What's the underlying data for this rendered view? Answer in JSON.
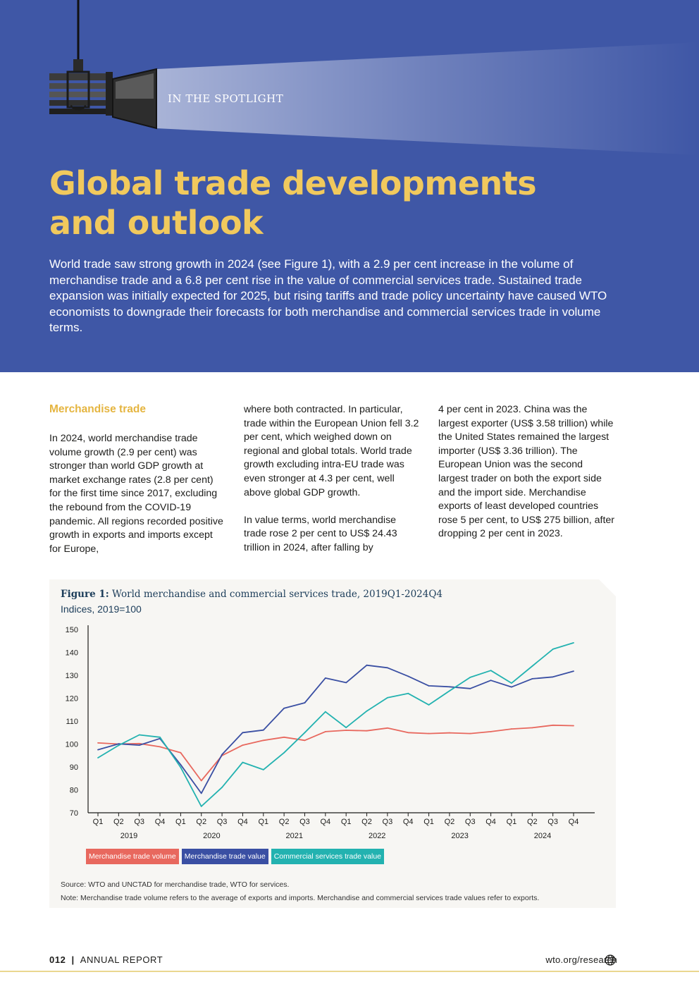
{
  "header": {
    "section_label": "IN THE SPOTLIGHT",
    "title_line1": "Global trade developments",
    "title_line2": "and outlook",
    "intro": "World trade saw strong growth in 2024 (see Figure 1), with a 2.9 per cent increase in the volume of merchandise trade and a 6.8 per cent rise in the value of commercial services trade. Sustained trade expansion was initially expected for 2025, but rising tariffs and trade policy uncertainty have caused WTO economists to downgrade their forecasts for both merchandise and commercial services trade in volume terms."
  },
  "body": {
    "heading": "Merchandise trade",
    "col1_p1": "In 2024, world merchandise trade volume growth (2.9 per cent) was stronger than world GDP growth at market exchange rates (2.8 per cent) for the first time since 2017, excluding the rebound from the COVID-19 pandemic. All regions recorded positive growth in exports and imports except for Europe,",
    "col2_p1": "where both contracted. In particular, trade within the European Union fell 3.2 per cent, which weighed down on regional and global totals. World trade growth excluding intra-EU trade was even stronger at 4.3 per cent, well above global GDP growth.",
    "col2_p2": "In value terms, world merchandise trade rose 2 per cent to US$ 24.43 trillion in 2024, after falling by",
    "col3_p1": "4 per cent in 2023. China was the largest exporter (US$ 3.58 trillion) while the United States remained the largest importer (US$ 3.36 trillion). The European Union was the second largest trader on both the export side and the import side. Merchandise exports of least developed countries rose 5 per cent, to US$ 275 billion, after dropping 2 per cent in 2023."
  },
  "figure": {
    "label": "Figure 1:",
    "title": "World merchandise and commercial services trade, 2019Q1-2024Q4",
    "subtitle": "Indices, 2019=100",
    "source": "Source: WTO and UNCTAD for merchandise trade, WTO for services.",
    "note": "Note: Merchandise trade volume refers to the average of exports and imports. Merchandise and commercial services trade values refer to exports."
  },
  "chart_data": {
    "type": "line",
    "title": "World merchandise and commercial services trade, 2019Q1-2024Q4",
    "ylabel": "Indices, 2019=100",
    "ylim": [
      70,
      150
    ],
    "yticks": [
      70,
      80,
      90,
      100,
      110,
      120,
      130,
      140,
      150
    ],
    "x": [
      "Q1",
      "Q2",
      "Q3",
      "Q4",
      "Q1",
      "Q2",
      "Q3",
      "Q4",
      "Q1",
      "Q2",
      "Q3",
      "Q4",
      "Q1",
      "Q2",
      "Q3",
      "Q4",
      "Q1",
      "Q2",
      "Q3",
      "Q4",
      "Q1",
      "Q2",
      "Q3",
      "Q4"
    ],
    "years": [
      "2019",
      "2020",
      "2021",
      "2022",
      "2023",
      "2024"
    ],
    "legend_position": "bottom-left",
    "grid": false,
    "series": [
      {
        "name": "Merchandise trade volume",
        "color": "#e8685e",
        "values": [
          100.5,
          100.0,
          100.2,
          98.8,
          96.2,
          84.0,
          95.0,
          99.5,
          101.6,
          103.0,
          101.6,
          105.4,
          106.0,
          105.8,
          107.0,
          105.0,
          104.6,
          104.9,
          104.6,
          105.4,
          106.6,
          107.1,
          108.2,
          108.0
        ]
      },
      {
        "name": "Merchandise trade value",
        "color": "#3a4fa3",
        "values": [
          97.5,
          100.1,
          99.5,
          102.4,
          91.0,
          78.5,
          95.4,
          105.0,
          106.1,
          115.6,
          118.0,
          128.8,
          126.8,
          134.4,
          133.3,
          129.6,
          125.4,
          125.0,
          124.2,
          127.8,
          124.9,
          128.5,
          129.3,
          131.8
        ]
      },
      {
        "name": "Commercial services trade value",
        "color": "#23b2b0",
        "values": [
          94.0,
          99.4,
          104.0,
          103.0,
          89.8,
          72.8,
          81.1,
          92.0,
          88.8,
          96.2,
          105.0,
          114.1,
          107.2,
          114.4,
          120.2,
          122.1,
          117.1,
          123.2,
          129.1,
          132.1,
          126.6,
          134.0,
          141.4,
          144.2
        ]
      }
    ]
  },
  "footer": {
    "page_number": "012",
    "separator": "|",
    "report_name": "ANNUAL REPORT",
    "link": "wto.org/research"
  }
}
